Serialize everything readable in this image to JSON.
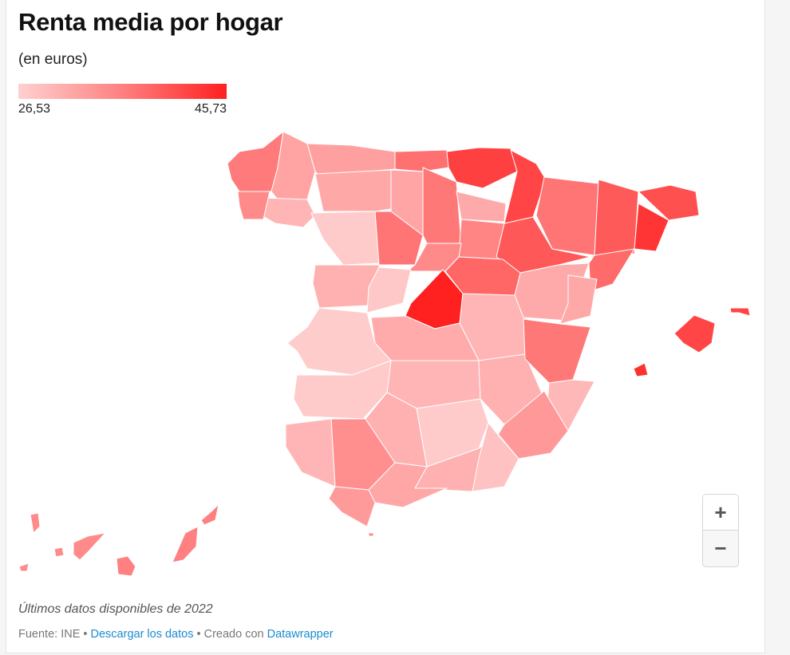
{
  "header": {
    "title": "Renta media por hogar",
    "subtitle": "(en euros)"
  },
  "legend": {
    "min": "26,53",
    "max": "45,73",
    "color_min": "#ffd0d0",
    "color_max": "#ff2020"
  },
  "zoom_controls": {
    "zoom_in": "+",
    "zoom_out": "−"
  },
  "notes": "Últimos datos disponibles de 2022",
  "footer": {
    "source": "Fuente: INE",
    "separator": " • ",
    "download_link": "Descargar los datos",
    "created_with": "Creado con",
    "tool_link": "Datawrapper"
  },
  "colors": {
    "link": "#1a8bd1",
    "map_darkest": "#ff2020",
    "map_lightest": "#ffd0d0"
  }
}
